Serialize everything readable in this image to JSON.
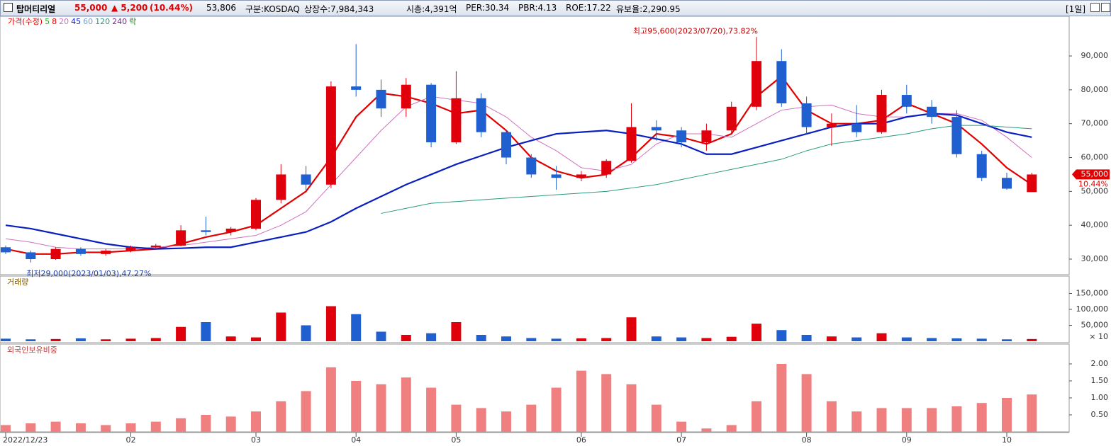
{
  "header": {
    "name": "탑머티리얼",
    "price": "55,000",
    "change": "▲ 5,200",
    "change_pct": "(10.44%)",
    "volume": "53,806",
    "market": "구분:KOSDAQ",
    "shares": "상장수:7,984,343",
    "cap": "시총:4,391억",
    "per": "PER:30.34",
    "pbr": "PBR:4.13",
    "roe": "ROE:17.22",
    "reserve": "유보율:2,290.95",
    "period": "[1일]"
  },
  "chart_data": [
    {
      "type": "candlestick",
      "up_color": "#e0000b",
      "down_color": "#1f5fd0",
      "legend_title": "가격(수정)",
      "legend_extra": "락",
      "annotations": [
        "최고95,600(2023/07/20),73.82%",
        "최저29,000(2023/01/03),47.27%"
      ],
      "last_pct": "10.44%",
      "categories": [
        "2022/12/23",
        null,
        null,
        null,
        null,
        "02",
        null,
        null,
        null,
        null,
        "03",
        null,
        null,
        null,
        "04",
        null,
        null,
        null,
        "05",
        null,
        null,
        null,
        null,
        "06",
        null,
        null,
        null,
        "07",
        null,
        null,
        null,
        null,
        "08",
        null,
        null,
        null,
        "09",
        null,
        null,
        null,
        "10",
        null
      ],
      "open": [
        33500,
        32000,
        30000,
        33000,
        31500,
        32500,
        33500,
        34000,
        38500,
        38000,
        39000,
        47500,
        55000,
        52000,
        81000,
        80000,
        74500,
        81500,
        64500,
        77500,
        67500,
        60000,
        55000,
        54000,
        55000,
        59000,
        69000,
        68000,
        64500,
        68000,
        75000,
        88500,
        76000,
        69000,
        70000,
        67500,
        78500,
        75000,
        72000,
        61000,
        54000,
        49800
      ],
      "high": [
        34000,
        32500,
        33500,
        33500,
        33000,
        34000,
        34500,
        40000,
        42500,
        39500,
        48000,
        58000,
        57500,
        82500,
        93500,
        83000,
        83500,
        82000,
        85500,
        79000,
        68000,
        61000,
        57500,
        56000,
        59500,
        76000,
        71000,
        69000,
        70000,
        76500,
        95600,
        92000,
        78000,
        73000,
        75500,
        80000,
        81500,
        77000,
        74000,
        62000,
        55500,
        55500
      ],
      "low": [
        31500,
        29000,
        29800,
        31000,
        31000,
        32000,
        33000,
        33800,
        37000,
        37000,
        38500,
        46500,
        50000,
        51000,
        78000,
        72000,
        72000,
        63000,
        64000,
        66000,
        58000,
        54000,
        50500,
        53000,
        54000,
        58500,
        65000,
        63000,
        62000,
        67000,
        74000,
        75000,
        67000,
        63500,
        66000,
        67000,
        73000,
        70000,
        60000,
        53000,
        50500,
        49800
      ],
      "close": [
        32000,
        30000,
        33000,
        31500,
        32500,
        33500,
        34000,
        38500,
        38000,
        39000,
        47500,
        55000,
        52000,
        81000,
        80000,
        74500,
        81500,
        64500,
        77500,
        67500,
        60000,
        55000,
        54000,
        55000,
        59000,
        69000,
        68000,
        64500,
        68000,
        75000,
        88500,
        76000,
        69000,
        70000,
        67500,
        78500,
        75000,
        72000,
        61000,
        54000,
        50800,
        55000
      ],
      "series": [
        {
          "name": "5",
          "color": "#20b020"
        },
        {
          "name": "8",
          "color": "#e00000",
          "values": [
            33000,
            31500,
            31500,
            32000,
            32000,
            32500,
            33000,
            34500,
            36500,
            38000,
            40000,
            45000,
            50000,
            60000,
            72000,
            79000,
            78000,
            76000,
            73000,
            74000,
            68000,
            60000,
            56000,
            54000,
            55000,
            60000,
            67000,
            66000,
            64000,
            67000,
            78000,
            84000,
            74000,
            70000,
            70000,
            71000,
            76000,
            73000,
            70000,
            64000,
            57000,
            52000
          ]
        },
        {
          "name": "20",
          "color": "#d070c0",
          "values": [
            36000,
            35000,
            33500,
            33000,
            33000,
            33000,
            33500,
            34000,
            35000,
            36000,
            37000,
            40000,
            44000,
            52000,
            60000,
            68000,
            75000,
            78000,
            77000,
            76000,
            72000,
            66000,
            62000,
            57000,
            56000,
            58000,
            64000,
            67000,
            67000,
            66000,
            70000,
            74000,
            75000,
            75500,
            73000,
            72000,
            72000,
            73000,
            73000,
            71000,
            66000,
            60000
          ]
        },
        {
          "name": "45",
          "color": "#0a1fc0",
          "values": [
            40000,
            39000,
            37500,
            36000,
            34500,
            33500,
            33000,
            33200,
            33500,
            33500,
            35000,
            36500,
            38000,
            41000,
            45000,
            48500,
            52000,
            55000,
            58000,
            60500,
            63000,
            65000,
            67000,
            67500,
            68000,
            67000,
            65500,
            64000,
            61000,
            61000,
            63000,
            65000,
            67000,
            69000,
            70000,
            70000,
            72000,
            73000,
            72500,
            70000,
            67500,
            66000
          ]
        },
        {
          "name": "60",
          "color": "#70a0d0"
        },
        {
          "name": "120",
          "color": "#2a9a80",
          "values": [
            null,
            null,
            null,
            null,
            null,
            null,
            null,
            null,
            null,
            null,
            null,
            null,
            null,
            null,
            null,
            43500,
            45000,
            46500,
            47000,
            47500,
            48000,
            48500,
            49000,
            49500,
            50000,
            51000,
            52000,
            53500,
            55000,
            56500,
            58000,
            59500,
            62000,
            64000,
            65000,
            66000,
            67000,
            68500,
            69500,
            69500,
            69000,
            68500
          ]
        },
        {
          "name": "240",
          "color": "#8020a0"
        }
      ],
      "ylim": [
        25400,
        99000
      ],
      "yticks": [
        {
          "value": 30000,
          "label": "30,000"
        },
        {
          "value": 40000,
          "label": "40,000"
        },
        {
          "value": 50000,
          "label": "50,000"
        },
        {
          "value": 60000,
          "label": "60,000"
        },
        {
          "value": 70000,
          "label": "70,000"
        },
        {
          "value": 80000,
          "label": "80,000"
        },
        {
          "value": 90000,
          "label": "90,000"
        }
      ]
    },
    {
      "type": "volume",
      "title": "거래량",
      "unit": "× 10",
      "values": [
        8000,
        6000,
        7000,
        9000,
        6000,
        8000,
        10000,
        45000,
        60000,
        15000,
        12000,
        90000,
        50000,
        110000,
        85000,
        30000,
        20000,
        25000,
        60000,
        20000,
        15000,
        10000,
        8000,
        9000,
        10000,
        75000,
        15000,
        12000,
        10000,
        14000,
        55000,
        35000,
        20000,
        15000,
        12000,
        25000,
        12000,
        10000,
        9000,
        8000,
        6000,
        7000
      ],
      "ylim": [
        0,
        180000
      ],
      "yticks": [
        {
          "value": 50000,
          "label": "50,000"
        },
        {
          "value": 100000,
          "label": "100,000"
        },
        {
          "value": 150000,
          "label": "150,000"
        }
      ]
    },
    {
      "type": "bar",
      "title": "외국인보유비중",
      "color": "#f08080",
      "values": [
        0.2,
        0.25,
        0.3,
        0.25,
        0.2,
        0.25,
        0.3,
        0.4,
        0.5,
        0.45,
        0.6,
        0.9,
        1.2,
        1.9,
        1.5,
        1.4,
        1.6,
        1.3,
        0.8,
        0.7,
        0.6,
        0.8,
        1.3,
        1.8,
        1.7,
        1.4,
        0.8,
        0.3,
        0.1,
        0.2,
        0.9,
        2.0,
        1.7,
        0.9,
        0.6,
        0.7,
        0.7,
        0.7,
        0.75,
        0.85,
        1.0,
        1.1
      ],
      "ylim": [
        0,
        2.5
      ],
      "yticks": [
        {
          "value": 0.5,
          "label": "0.50"
        },
        {
          "value": 1,
          "label": "1.00"
        },
        {
          "value": 1.5,
          "label": "1.50"
        },
        {
          "value": 2,
          "label": "2.00"
        }
      ]
    }
  ]
}
